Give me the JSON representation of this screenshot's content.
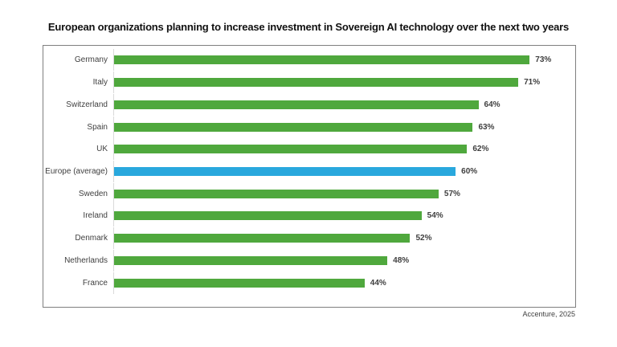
{
  "title": "European organizations planning to increase investment in Sovereign AI technology over the next two years",
  "source": "Accenture, 2025",
  "chart_data": {
    "type": "bar",
    "orientation": "horizontal",
    "title": "European organizations planning to increase investment in Sovereign AI technology over the next two years",
    "categories": [
      "Germany",
      "Italy",
      "Switzerland",
      "Spain",
      "UK",
      "Europe (average)",
      "Sweden",
      "Ireland",
      "Denmark",
      "Netherlands",
      "France"
    ],
    "values": [
      73,
      71,
      64,
      63,
      62,
      60,
      57,
      54,
      52,
      48,
      44
    ],
    "value_labels": [
      "73%",
      "71%",
      "64%",
      "63%",
      "62%",
      "60%",
      "57%",
      "54%",
      "52%",
      "48%",
      "44%"
    ],
    "highlight_category": "Europe (average)",
    "xlabel": "",
    "ylabel": "",
    "xlim": [
      0,
      81
    ],
    "grid": false,
    "legend": false,
    "colors": {
      "bar_default": "#4fa83d",
      "bar_highlight": "#29a8dd",
      "box_border": "#7f7f7f",
      "text": "#3f3f3f"
    }
  }
}
